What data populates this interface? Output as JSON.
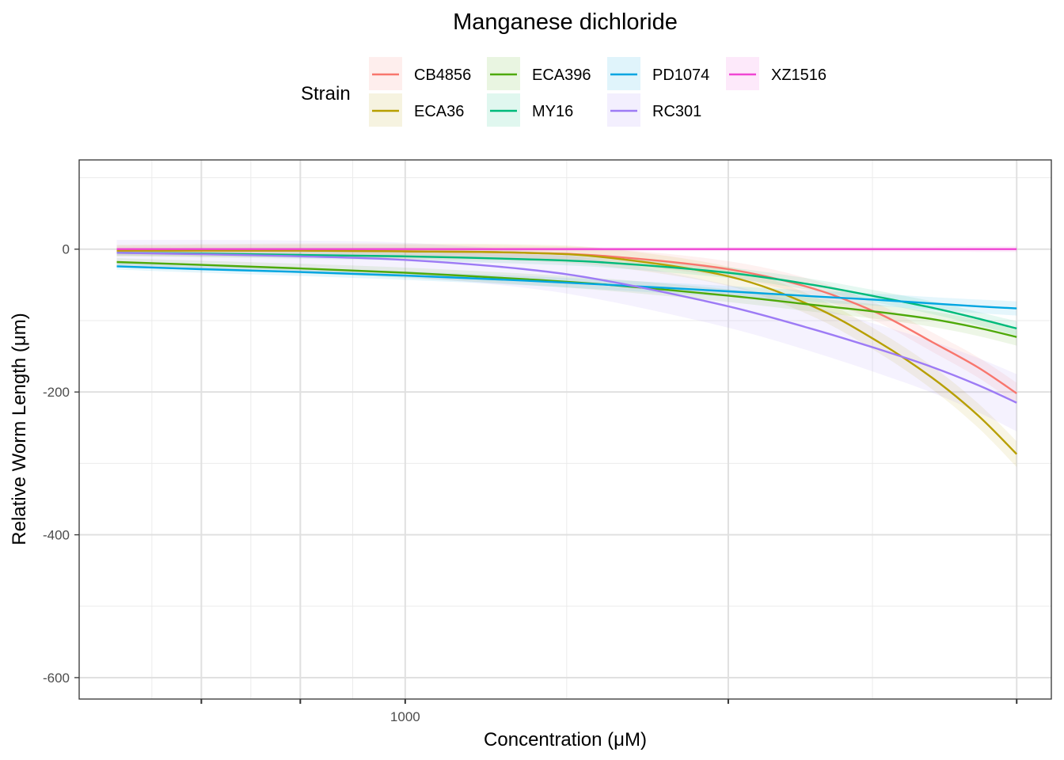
{
  "chart_data": {
    "type": "line",
    "title": "Manganese dichloride",
    "xlabel": "Concentration (μM)",
    "ylabel": "Relative Worm Length (μm)",
    "x_scale": "log10",
    "xlim": [
      330,
      9000
    ],
    "ylim": [
      -630,
      125
    ],
    "x_ticks": [
      {
        "value": 1000,
        "label": "1000"
      }
    ],
    "x_major_positions": [
      500,
      700,
      1000,
      3000,
      8000
    ],
    "y_ticks": [
      {
        "value": 0,
        "label": "0"
      },
      {
        "value": -200,
        "label": "-200"
      },
      {
        "value": -400,
        "label": "-400"
      },
      {
        "value": -600,
        "label": "-600"
      }
    ],
    "legend": {
      "title": "Strain",
      "placement": "top"
    },
    "x": [
      375,
      500,
      700,
      1000,
      1500,
      2000,
      3000,
      4000,
      5000,
      6000,
      7000,
      8000
    ],
    "series": [
      {
        "name": "CB4856",
        "color": "#F8766D",
        "values": [
          -2,
          -2,
          -2,
          -3,
          -5,
          -10,
          -28,
          -55,
          -90,
          -130,
          -165,
          -202
        ],
        "band": 15
      },
      {
        "name": "ECA36",
        "color": "#B79F00",
        "values": [
          -2,
          -2,
          -2,
          -3,
          -5,
          -12,
          -38,
          -80,
          -130,
          -180,
          -232,
          -287
        ],
        "band": 18
      },
      {
        "name": "ECA396",
        "color": "#4EA909",
        "values": [
          -18,
          -22,
          -27,
          -33,
          -42,
          -50,
          -65,
          -78,
          -88,
          -98,
          -110,
          -123
        ],
        "band": 12
      },
      {
        "name": "MY16",
        "color": "#00BA7A",
        "values": [
          -5,
          -6,
          -8,
          -10,
          -14,
          -19,
          -33,
          -50,
          -67,
          -82,
          -97,
          -111
        ],
        "band": 10
      },
      {
        "name": "PD1074",
        "color": "#00A5E1",
        "values": [
          -24,
          -28,
          -32,
          -37,
          -44,
          -50,
          -59,
          -66,
          -71,
          -76,
          -80,
          -83
        ],
        "band": 10
      },
      {
        "name": "RC301",
        "color": "#9D7BF5",
        "values": [
          -5,
          -7,
          -10,
          -15,
          -28,
          -45,
          -80,
          -112,
          -140,
          -165,
          -190,
          -215
        ],
        "band": 40
      },
      {
        "name": "XZ1516",
        "color": "#F046D3",
        "values": [
          0,
          0,
          0,
          0,
          0,
          0,
          0,
          0,
          0,
          0,
          0,
          0
        ],
        "band": 4
      }
    ]
  }
}
